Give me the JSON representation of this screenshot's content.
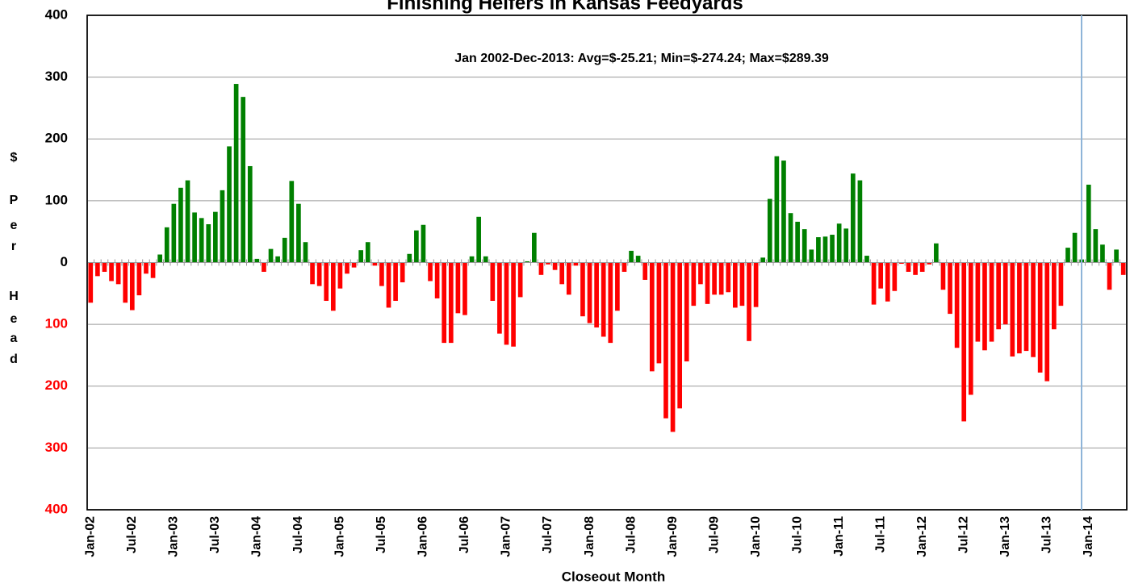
{
  "chart_data": {
    "type": "bar",
    "title": "Finishing Heifers in Kansas Feedyards",
    "annotation": "Jan 2002-Dec-2013:  Avg=$-25.21; Min=$-274.24; Max=$289.39",
    "xlabel": "Closeout Month",
    "ylabel_letters": [
      "$",
      "P",
      "e",
      "r",
      "H",
      "e",
      "a",
      "d"
    ],
    "positive_color": "#008000",
    "negative_color": "#ff0000",
    "tick_label_color": "#000000",
    "negative_tick_color": "#ff0000",
    "grid": true,
    "ylim": [
      -400,
      400
    ],
    "yticks": [
      {
        "value": -400,
        "label": "400"
      },
      {
        "value": -300,
        "label": "300"
      },
      {
        "value": -200,
        "label": "200"
      },
      {
        "value": -100,
        "label": "100"
      },
      0,
      100,
      200,
      300,
      400
    ],
    "categories": [
      "Jan-02",
      null,
      null,
      null,
      null,
      null,
      "Jul-02",
      null,
      null,
      null,
      null,
      null,
      "Jan-03",
      null,
      null,
      null,
      null,
      null,
      "Jul-03",
      null,
      null,
      null,
      null,
      null,
      "Jan-04",
      null,
      null,
      null,
      null,
      null,
      "Jul-04",
      null,
      null,
      null,
      null,
      null,
      "Jan-05",
      null,
      null,
      null,
      null,
      null,
      "Jul-05",
      null,
      null,
      null,
      null,
      null,
      "Jan-06",
      null,
      null,
      null,
      null,
      null,
      "Jul-06",
      null,
      null,
      null,
      null,
      null,
      "Jan-07",
      null,
      null,
      null,
      null,
      null,
      "Jul-07",
      null,
      null,
      null,
      null,
      null,
      "Jan-08",
      null,
      null,
      null,
      null,
      null,
      "Jul-08",
      null,
      null,
      null,
      null,
      null,
      "Jan-09",
      null,
      null,
      null,
      null,
      null,
      "Jul-09",
      null,
      null,
      null,
      null,
      null,
      "Jan-10",
      null,
      null,
      null,
      null,
      null,
      "Jul-10",
      null,
      null,
      null,
      null,
      null,
      "Jan-11",
      null,
      null,
      null,
      null,
      null,
      "Jul-11",
      null,
      null,
      null,
      null,
      null,
      "Jan-12",
      null,
      null,
      null,
      null,
      null,
      "Jul-12",
      null,
      null,
      null,
      null,
      null,
      "Jan-13",
      null,
      null,
      null,
      null,
      null,
      "Jul-13",
      null,
      null,
      null,
      null,
      null,
      "Jan-14",
      null,
      null,
      null,
      null,
      null
    ],
    "values": [
      -65,
      -22,
      -15,
      -30,
      -35,
      -65,
      -77,
      -53,
      -18,
      -25,
      13,
      57,
      95,
      121,
      133,
      81,
      72,
      62,
      82,
      117,
      188,
      289,
      268,
      156,
      6,
      -15,
      22,
      10,
      40,
      132,
      95,
      33,
      -35,
      -38,
      -62,
      -78,
      -42,
      -18,
      -8,
      20,
      33,
      -5,
      -38,
      -73,
      -62,
      -32,
      14,
      52,
      61,
      -30,
      -58,
      -130,
      -130,
      -82,
      -85,
      10,
      74,
      10,
      -62,
      -115,
      -133,
      -136,
      -56,
      2,
      48,
      -20,
      -3,
      -12,
      -35,
      -52,
      -5,
      -87,
      -98,
      -105,
      -120,
      -130,
      -78,
      -15,
      19,
      11,
      -28,
      -176,
      -163,
      -252,
      -274,
      -236,
      -160,
      -70,
      -35,
      -67,
      -52,
      -52,
      -48,
      -73,
      -70,
      -127,
      -72,
      8,
      103,
      172,
      165,
      80,
      66,
      54,
      21,
      41,
      42,
      45,
      63,
      55,
      144,
      133,
      11,
      -68,
      -42,
      -63,
      -46,
      -2,
      -15,
      -20,
      -15,
      -3,
      31,
      -44,
      -83,
      -138,
      -257,
      -214,
      -128,
      -142,
      -128,
      -108,
      -100,
      -152,
      -147,
      -143,
      -153,
      -178,
      -192,
      -108,
      -70,
      24,
      48,
      5,
      126,
      54,
      29,
      -44,
      21,
      -20
    ]
  }
}
